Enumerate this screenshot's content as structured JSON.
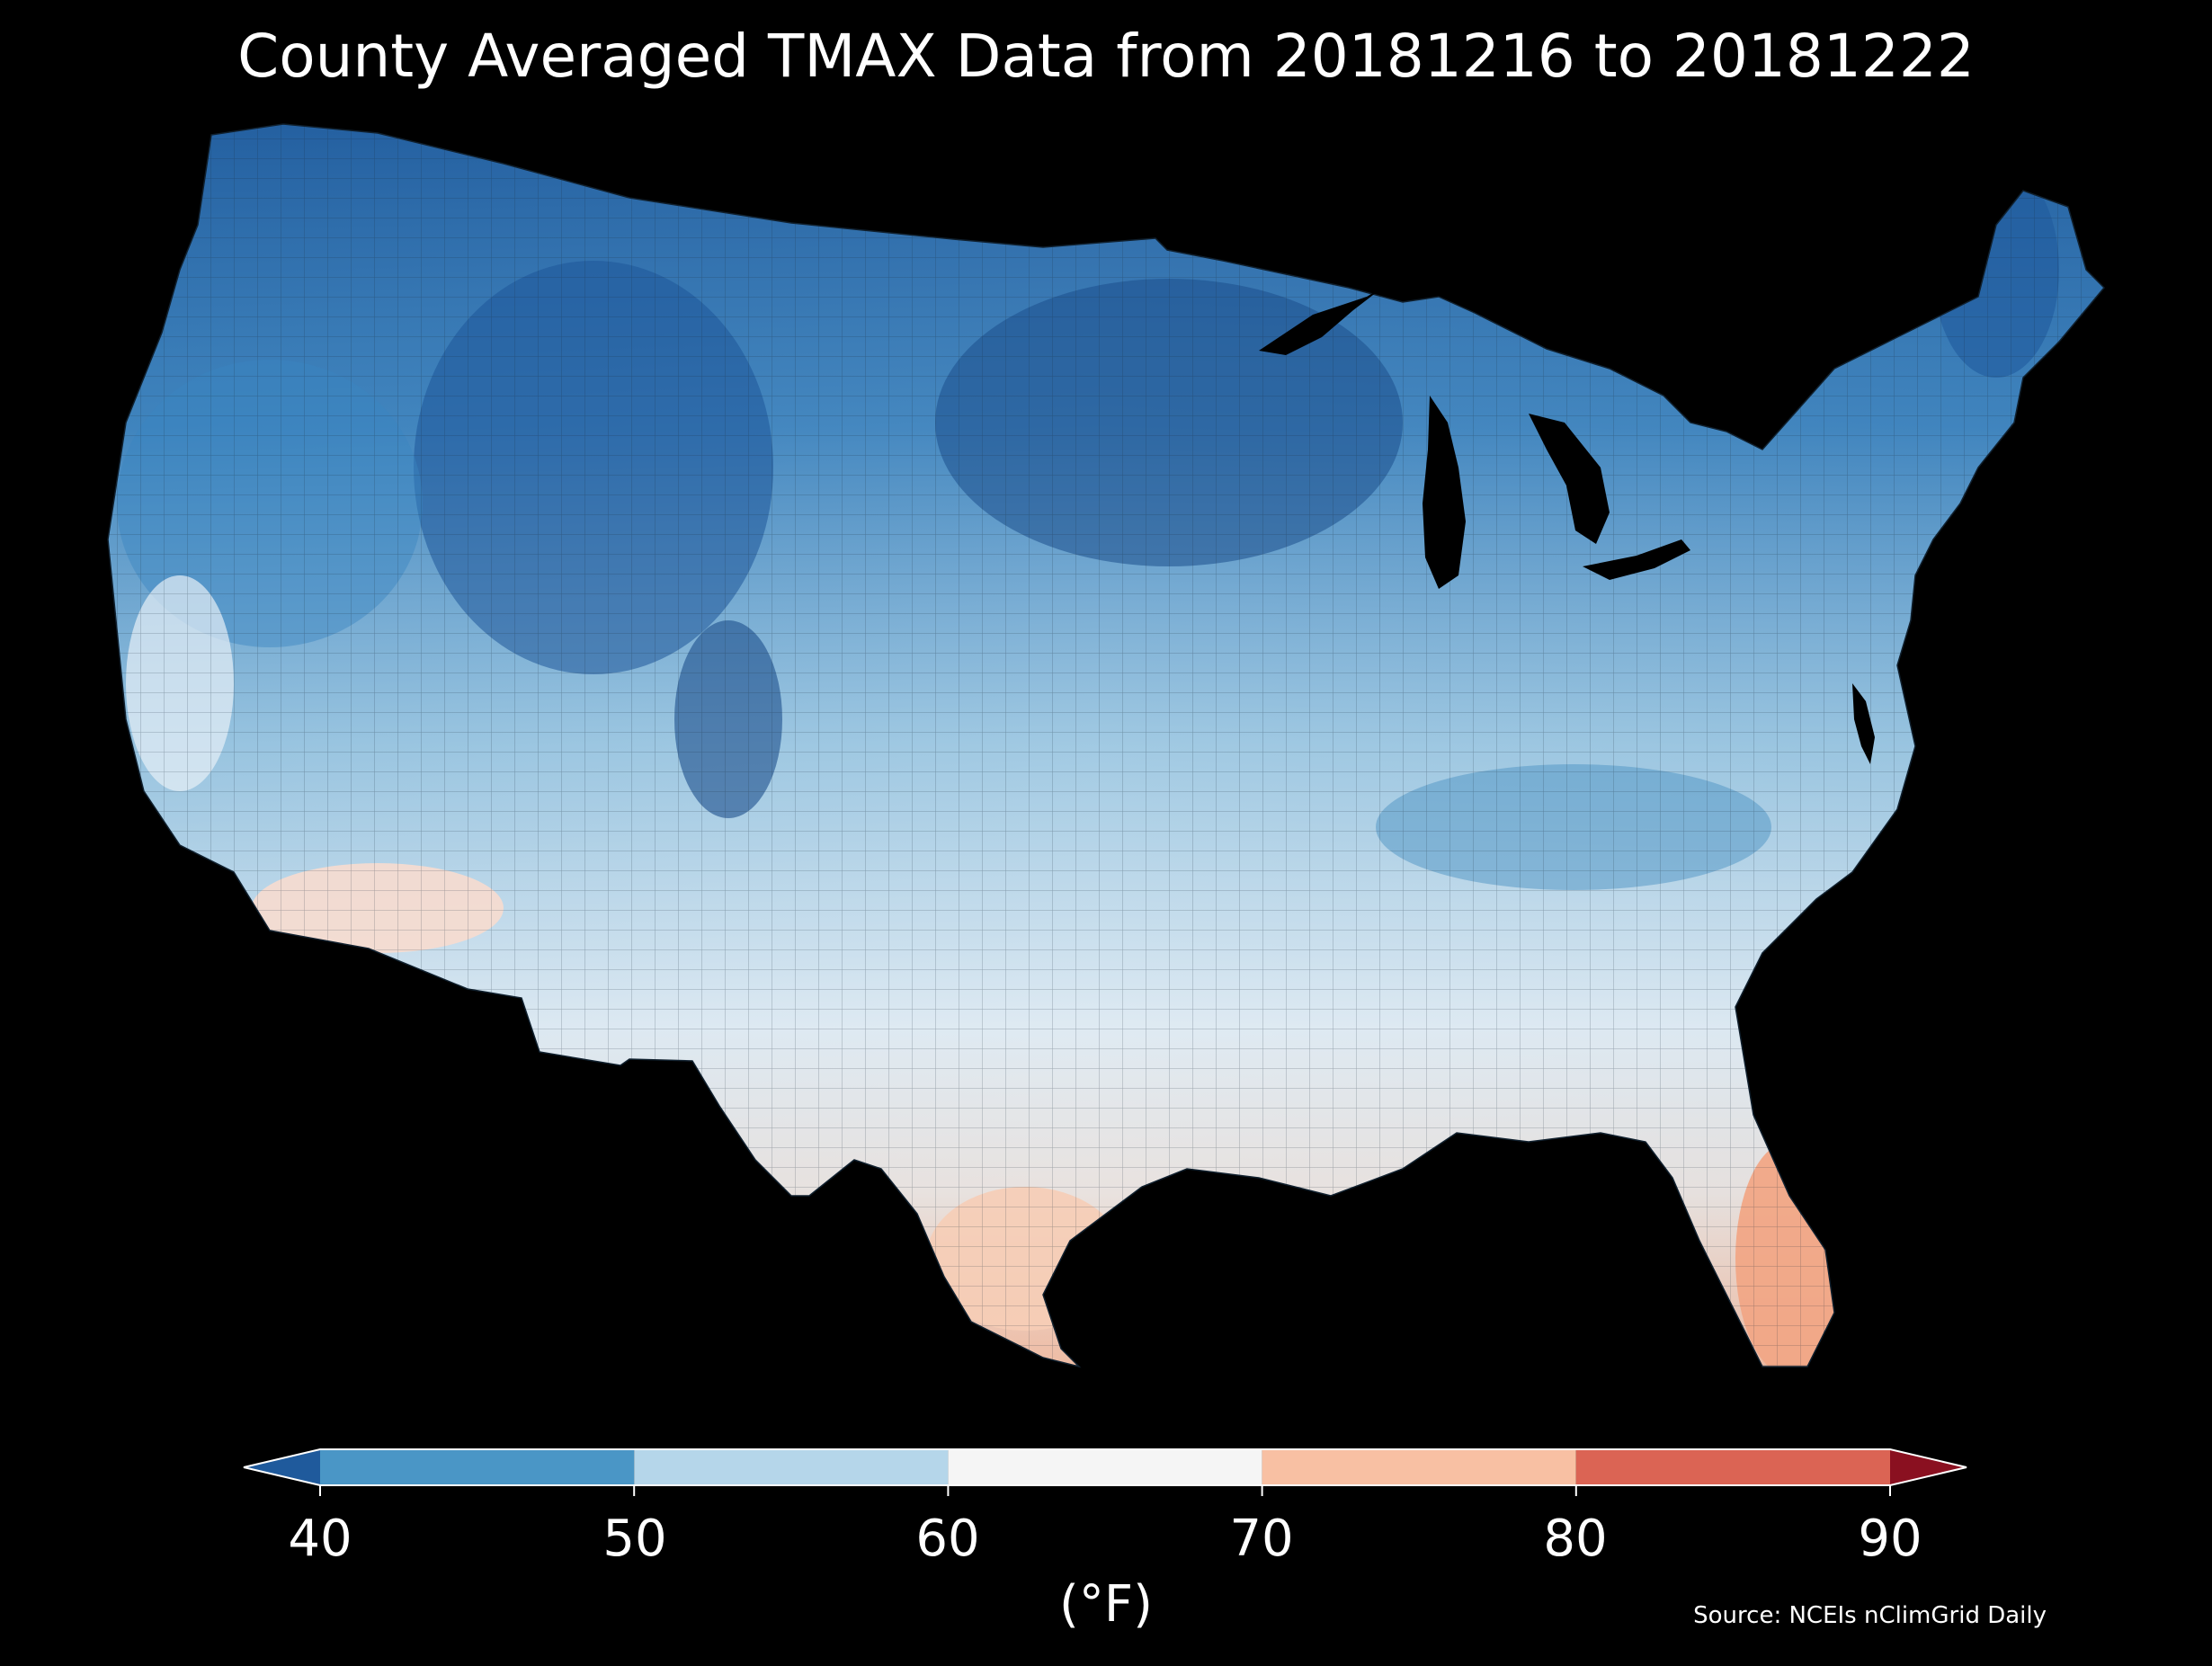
{
  "title": "County Averaged TMAX Data from 20181216 to 20181222",
  "colorbar": {
    "ticks": [
      "40",
      "50",
      "60",
      "70",
      "80",
      "90"
    ],
    "unit_label": "(°F)",
    "segments": [
      {
        "from": null,
        "to": 40,
        "color": "#1f5a9c"
      },
      {
        "from": 40,
        "to": 50,
        "color": "#4a96c6"
      },
      {
        "from": 50,
        "to": 60,
        "color": "#b5d6ea"
      },
      {
        "from": 60,
        "to": 70,
        "color": "#f5f5f5"
      },
      {
        "from": 70,
        "to": 80,
        "color": "#f8c0a3"
      },
      {
        "from": 80,
        "to": 90,
        "color": "#db6454"
      },
      {
        "from": 90,
        "to": null,
        "color": "#8a1020"
      }
    ]
  },
  "source": "Source: NCEIs nClimGrid Daily",
  "map": {
    "region": "Contiguous United States",
    "variable": "TMAX",
    "units": "°F"
  }
}
